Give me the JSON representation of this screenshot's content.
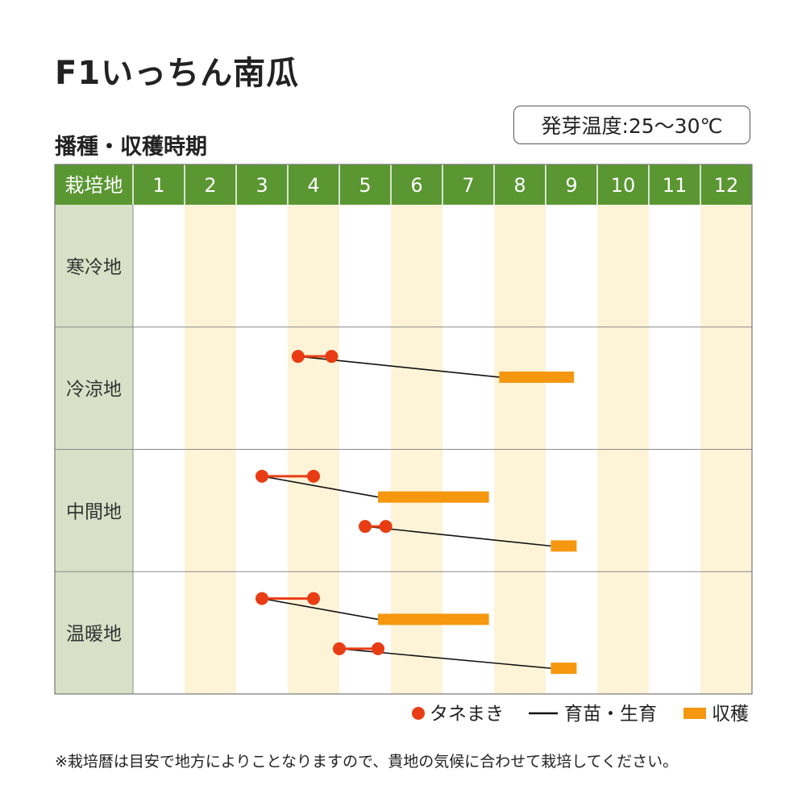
{
  "title": "F1いっちん南瓜",
  "subtitle": "播種・収穫時期",
  "badge": "発芽温度:25〜30℃",
  "footnote": "※栽培暦は目安で地方によりことなりますので、貴地の気候に合わせて栽培してください。",
  "colors": {
    "header_green": "#5a9632",
    "region_col": "#d8e1c7",
    "stripe": "#fdf3d7",
    "sow": "#e83d14",
    "harvest": "#f5970f",
    "line": "#111111"
  },
  "chart_data": {
    "type": "gantt",
    "header_label": "栽培地",
    "months": [
      "1",
      "2",
      "3",
      "4",
      "5",
      "6",
      "7",
      "8",
      "9",
      "10",
      "11",
      "12"
    ],
    "regions": [
      {
        "name": "寒冷地",
        "schedules": []
      },
      {
        "name": "冷涼地",
        "schedules": [
          {
            "sow_start": 4.2,
            "sow_end": 4.85,
            "harvest_start": 8.1,
            "harvest_end": 9.55
          }
        ]
      },
      {
        "name": "中間地",
        "schedules": [
          {
            "sow_start": 3.5,
            "sow_end": 4.5,
            "harvest_start": 5.75,
            "harvest_end": 7.9
          },
          {
            "sow_start": 5.5,
            "sow_end": 5.9,
            "harvest_start": 9.1,
            "harvest_end": 9.6
          }
        ]
      },
      {
        "name": "温暖地",
        "schedules": [
          {
            "sow_start": 3.5,
            "sow_end": 4.5,
            "harvest_start": 5.75,
            "harvest_end": 7.9
          },
          {
            "sow_start": 5.0,
            "sow_end": 5.75,
            "harvest_start": 9.1,
            "harvest_end": 9.6
          }
        ]
      }
    ],
    "legend": [
      {
        "key": "sow",
        "label": "タネまき"
      },
      {
        "key": "line",
        "label": "育苗・生育"
      },
      {
        "key": "harvest",
        "label": "収穫"
      }
    ]
  }
}
